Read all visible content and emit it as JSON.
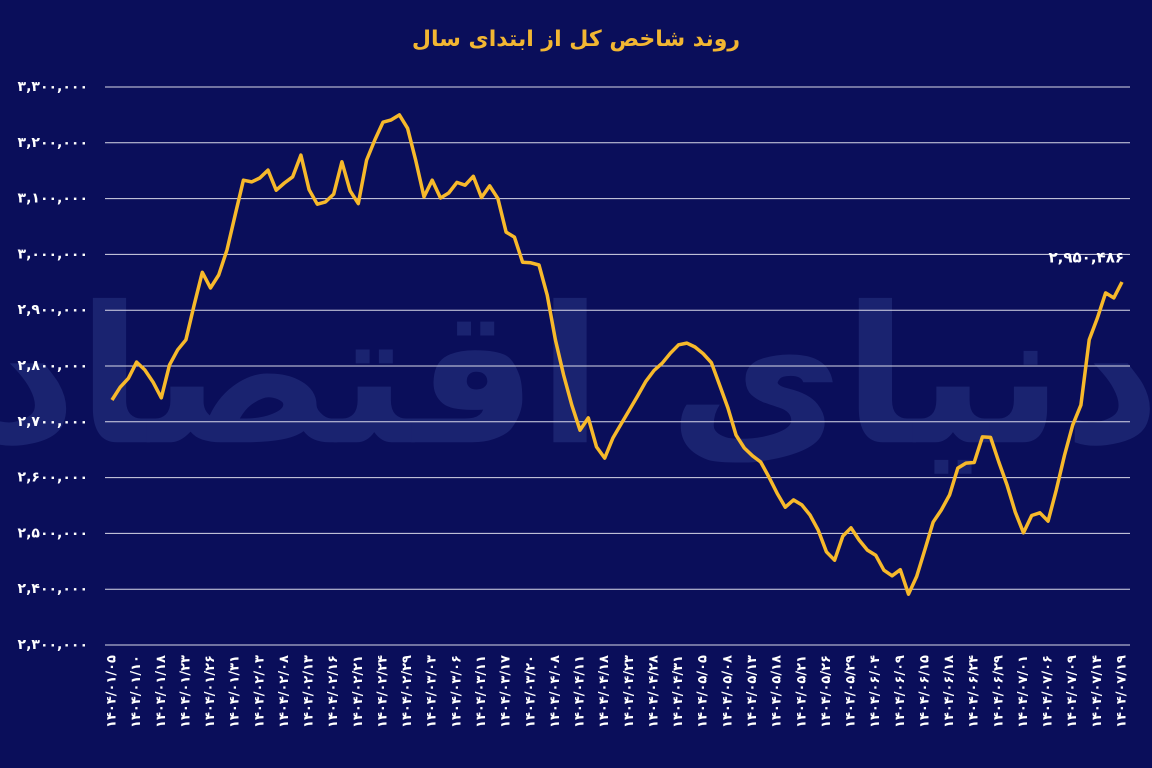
{
  "chart_data": {
    "type": "line",
    "title": "روند شاخص کل از ابتدای سال",
    "watermark": "دنیای اقتصاد",
    "categories": [
      "۱۴۰۴/۰۱/۰۵",
      null,
      null,
      "۱۴۰۴/۰۱/۱۰",
      null,
      null,
      "۱۴۰۴/۰۱/۱۸",
      null,
      null,
      "۱۴۰۴/۰۱/۲۳",
      null,
      null,
      "۱۴۰۴/۰۱/۲۶",
      null,
      null,
      "۱۴۰۴/۰۱/۳۱",
      null,
      null,
      "۱۴۰۴/۰۲/۰۳",
      null,
      null,
      "۱۴۰۴/۰۲/۰۸",
      null,
      null,
      "۱۴۰۴/۰۲/۱۳",
      null,
      null,
      "۱۴۰۴/۰۲/۱۶",
      null,
      null,
      "۱۴۰۴/۰۲/۲۱",
      null,
      null,
      "۱۴۰۴/۰۲/۲۴",
      null,
      null,
      "۱۴۰۴/۰۲/۲۹",
      null,
      null,
      "۱۴۰۴/۰۳/۰۳",
      null,
      null,
      "۱۴۰۴/۰۳/۰۶",
      null,
      null,
      "۱۴۰۴/۰۳/۱۱",
      null,
      null,
      "۱۴۰۴/۰۳/۱۷",
      null,
      null,
      "۱۴۰۴/۰۳/۲۰",
      null,
      null,
      "۱۴۰۴/۰۴/۰۸",
      null,
      null,
      "۱۴۰۴/۰۴/۱۱",
      null,
      null,
      "۱۴۰۴/۰۴/۱۸",
      null,
      null,
      "۱۴۰۴/۰۴/۲۳",
      null,
      null,
      "۱۴۰۴/۰۴/۲۸",
      null,
      null,
      "۱۴۰۴/۰۴/۳۱",
      null,
      null,
      "۱۴۰۴/۰۵/۰۵",
      null,
      null,
      "۱۴۰۴/۰۵/۰۸",
      null,
      null,
      "۱۴۰۴/۰۵/۱۳",
      null,
      null,
      "۱۴۰۴/۰۵/۱۸",
      null,
      null,
      "۱۴۰۴/۰۵/۲۱",
      null,
      null,
      "۱۴۰۴/۰۵/۲۶",
      null,
      null,
      "۱۴۰۴/۰۵/۲۹",
      null,
      null,
      "۱۴۰۴/۰۶/۰۴",
      null,
      null,
      "۱۴۰۴/۰۶/۰۹",
      null,
      null,
      "۱۴۰۴/۰۶/۱۵",
      null,
      null,
      "۱۴۰۴/۰۶/۱۸",
      null,
      null,
      "۱۴۰۴/۰۶/۲۴",
      null,
      null,
      "۱۴۰۴/۰۶/۲۹",
      null,
      null,
      "۱۴۰۴/۰۷/۰۱",
      null,
      null,
      "۱۴۰۴/۰۷/۰۶",
      null,
      null,
      "۱۴۰۴/۰۷/۰۹",
      null,
      null,
      "۱۴۰۴/۰۷/۱۴",
      null,
      null,
      "۱۴۰۴/۰۷/۱۹"
    ],
    "values": [
      2739000,
      2762000,
      2778000,
      2807000,
      2793000,
      2771000,
      2743000,
      2802000,
      2829000,
      2847000,
      2909000,
      2968000,
      2940000,
      2963000,
      3008000,
      3071000,
      3133000,
      3130000,
      3137000,
      3151000,
      3115000,
      3128000,
      3139000,
      3178000,
      3116000,
      3090000,
      3094000,
      3108000,
      3166000,
      3114000,
      3091000,
      3169000,
      3205000,
      3237000,
      3241000,
      3250000,
      3226000,
      3168000,
      3103000,
      3133000,
      3101000,
      3110000,
      3129000,
      3124000,
      3140000,
      3102000,
      3123000,
      3100000,
      3040000,
      3031000,
      2986000,
      2985000,
      2981000,
      2927000,
      2847000,
      2784000,
      2730000,
      2685000,
      2707000,
      2655000,
      2635000,
      2671000,
      2696000,
      2721000,
      2746000,
      2772000,
      2792000,
      2805000,
      2823000,
      2838000,
      2841000,
      2834000,
      2822000,
      2806000,
      2766000,
      2725000,
      2676000,
      2653000,
      2639000,
      2628000,
      2601000,
      2572000,
      2547000,
      2560000,
      2551000,
      2533000,
      2506000,
      2467000,
      2452000,
      2495000,
      2510000,
      2488000,
      2470000,
      2461000,
      2434000,
      2424000,
      2435000,
      2391000,
      2423000,
      2471000,
      2520000,
      2542000,
      2569000,
      2617000,
      2626000,
      2627000,
      2673000,
      2672000,
      2628000,
      2587000,
      2538000,
      2501000,
      2532000,
      2537000,
      2522000,
      2578000,
      2640000,
      2694000,
      2730000,
      2847000,
      2886000,
      2931000,
      2922000,
      2950486
    ],
    "value_labels": [
      null,
      null,
      null,
      null,
      null,
      null,
      null,
      null,
      null,
      null,
      null,
      null,
      null,
      null,
      null,
      null,
      null,
      null,
      null,
      null,
      null,
      null,
      null,
      null,
      null,
      null,
      null,
      null,
      null,
      null,
      null,
      null,
      null,
      null,
      null,
      null,
      null,
      null,
      null,
      null,
      null,
      null,
      null,
      null,
      null,
      null,
      null,
      null,
      null,
      null,
      null,
      null,
      null,
      null,
      null,
      null,
      null,
      null,
      null,
      null,
      null,
      null,
      null,
      null,
      null,
      null,
      null,
      null,
      null,
      null,
      null,
      null,
      null,
      null,
      null,
      null,
      null,
      null,
      null,
      null,
      null,
      null,
      null,
      null,
      null,
      null,
      null,
      null,
      null,
      null,
      null,
      null,
      null,
      null,
      null,
      null,
      null,
      null,
      null,
      null,
      null,
      null,
      null,
      null,
      null,
      null,
      null,
      null,
      null,
      null,
      null,
      null,
      null,
      null,
      null,
      null,
      null,
      null,
      null,
      null,
      null,
      null,
      null,
      "۲,۹۵۰,۴۸۶"
    ],
    "color": "#f7b92b",
    "ylim": [
      2300000,
      3300000
    ],
    "yticks": [
      {
        "value": 2300000,
        "label": "۲,۳۰۰,۰۰۰"
      },
      {
        "value": 2400000,
        "label": "۲,۴۰۰,۰۰۰"
      },
      {
        "value": 2500000,
        "label": "۲,۵۰۰,۰۰۰"
      },
      {
        "value": 2600000,
        "label": "۲,۶۰۰,۰۰۰"
      },
      {
        "value": 2700000,
        "label": "۲,۷۰۰,۰۰۰"
      },
      {
        "value": 2800000,
        "label": "۲,۸۰۰,۰۰۰"
      },
      {
        "value": 2900000,
        "label": "۲,۹۰۰,۰۰۰"
      },
      {
        "value": 3000000,
        "label": "۳,۰۰۰,۰۰۰"
      },
      {
        "value": 3100000,
        "label": "۳,۱۰۰,۰۰۰"
      },
      {
        "value": 3200000,
        "label": "۳,۲۰۰,۰۰۰"
      },
      {
        "value": 3300000,
        "label": "۳,۳۰۰,۰۰۰"
      }
    ],
    "grid": true
  }
}
